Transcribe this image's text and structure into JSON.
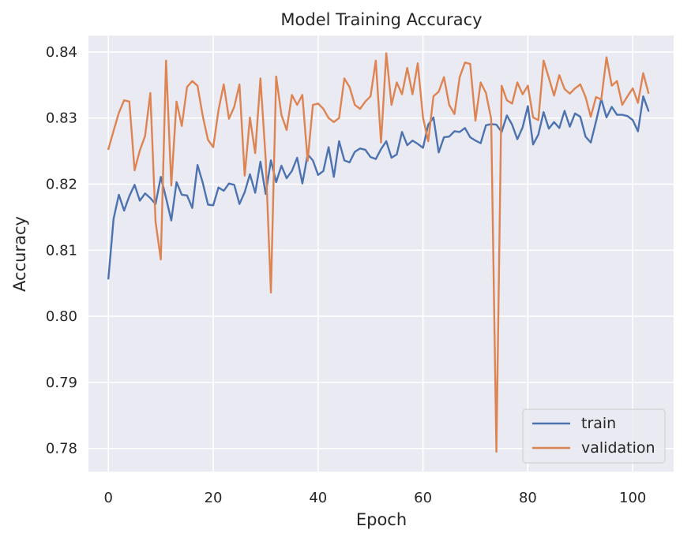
{
  "chart_data": {
    "type": "line",
    "title": "Model Training Accuracy",
    "xlabel": "Epoch",
    "ylabel": "Accuracy",
    "xlim": [
      -3.8,
      107.8
    ],
    "ylim": [
      0.7765,
      0.8425
    ],
    "xticks": [
      0,
      20,
      40,
      60,
      80,
      100
    ],
    "yticks": [
      0.78,
      0.79,
      0.8,
      0.81,
      0.82,
      0.83,
      0.84
    ],
    "ytick_labels": [
      "0.78",
      "0.79",
      "0.80",
      "0.81",
      "0.82",
      "0.83",
      "0.84"
    ],
    "grid": true,
    "background": "#eaeaf2",
    "legend": {
      "position": "bottom-right"
    },
    "series": [
      {
        "name": "train",
        "color": "#4c72b0",
        "values": [
          0.8057,
          0.8148,
          0.8184,
          0.816,
          0.8182,
          0.8199,
          0.8175,
          0.8186,
          0.8179,
          0.817,
          0.8211,
          0.8179,
          0.8145,
          0.8203,
          0.8184,
          0.8183,
          0.8164,
          0.8229,
          0.8202,
          0.8169,
          0.8168,
          0.8195,
          0.819,
          0.8201,
          0.8199,
          0.817,
          0.8188,
          0.8215,
          0.8187,
          0.8234,
          0.8185,
          0.8236,
          0.8203,
          0.8228,
          0.8209,
          0.822,
          0.824,
          0.8201,
          0.8245,
          0.8236,
          0.8214,
          0.822,
          0.8256,
          0.8211,
          0.8265,
          0.8236,
          0.8233,
          0.8249,
          0.8254,
          0.8252,
          0.8241,
          0.8238,
          0.8253,
          0.8265,
          0.824,
          0.8245,
          0.8279,
          0.8259,
          0.8266,
          0.8261,
          0.8255,
          0.829,
          0.8301,
          0.8248,
          0.8271,
          0.8272,
          0.828,
          0.8279,
          0.8285,
          0.8271,
          0.8266,
          0.8262,
          0.8289,
          0.8291,
          0.829,
          0.8279,
          0.8304,
          0.829,
          0.8268,
          0.8286,
          0.8318,
          0.826,
          0.8275,
          0.8309,
          0.8284,
          0.8294,
          0.8285,
          0.8311,
          0.8287,
          0.8307,
          0.8302,
          0.8272,
          0.8263,
          0.8295,
          0.8329,
          0.8301,
          0.8317,
          0.8305,
          0.8305,
          0.8303,
          0.8297,
          0.828,
          0.8333,
          0.8311
        ]
      },
      {
        "name": "validation",
        "color": "#dd8452",
        "values": [
          0.8253,
          0.8281,
          0.8308,
          0.8327,
          0.8325,
          0.8221,
          0.8251,
          0.8273,
          0.8338,
          0.8143,
          0.8086,
          0.8387,
          0.8198,
          0.8325,
          0.8288,
          0.8347,
          0.8356,
          0.8349,
          0.8303,
          0.8267,
          0.8256,
          0.8312,
          0.8351,
          0.8299,
          0.8317,
          0.8351,
          0.8213,
          0.8301,
          0.8247,
          0.836,
          0.8238,
          0.8036,
          0.8363,
          0.8305,
          0.8282,
          0.8335,
          0.832,
          0.8335,
          0.8235,
          0.832,
          0.8322,
          0.8314,
          0.83,
          0.8294,
          0.83,
          0.836,
          0.8347,
          0.832,
          0.8314,
          0.8325,
          0.8333,
          0.8387,
          0.8263,
          0.8398,
          0.832,
          0.8354,
          0.8336,
          0.8376,
          0.8336,
          0.8383,
          0.8301,
          0.8265,
          0.8333,
          0.834,
          0.8362,
          0.832,
          0.8306,
          0.8362,
          0.8384,
          0.8382,
          0.8296,
          0.8354,
          0.8338,
          0.8299,
          0.7795,
          0.8349,
          0.8327,
          0.8322,
          0.8354,
          0.8336,
          0.8349,
          0.8301,
          0.8297,
          0.8387,
          0.8361,
          0.8334,
          0.8365,
          0.8344,
          0.8337,
          0.8345,
          0.8351,
          0.8332,
          0.8302,
          0.8332,
          0.8328,
          0.8392,
          0.8349,
          0.8356,
          0.832,
          0.8333,
          0.8345,
          0.8323,
          0.8368,
          0.8338
        ]
      }
    ]
  }
}
